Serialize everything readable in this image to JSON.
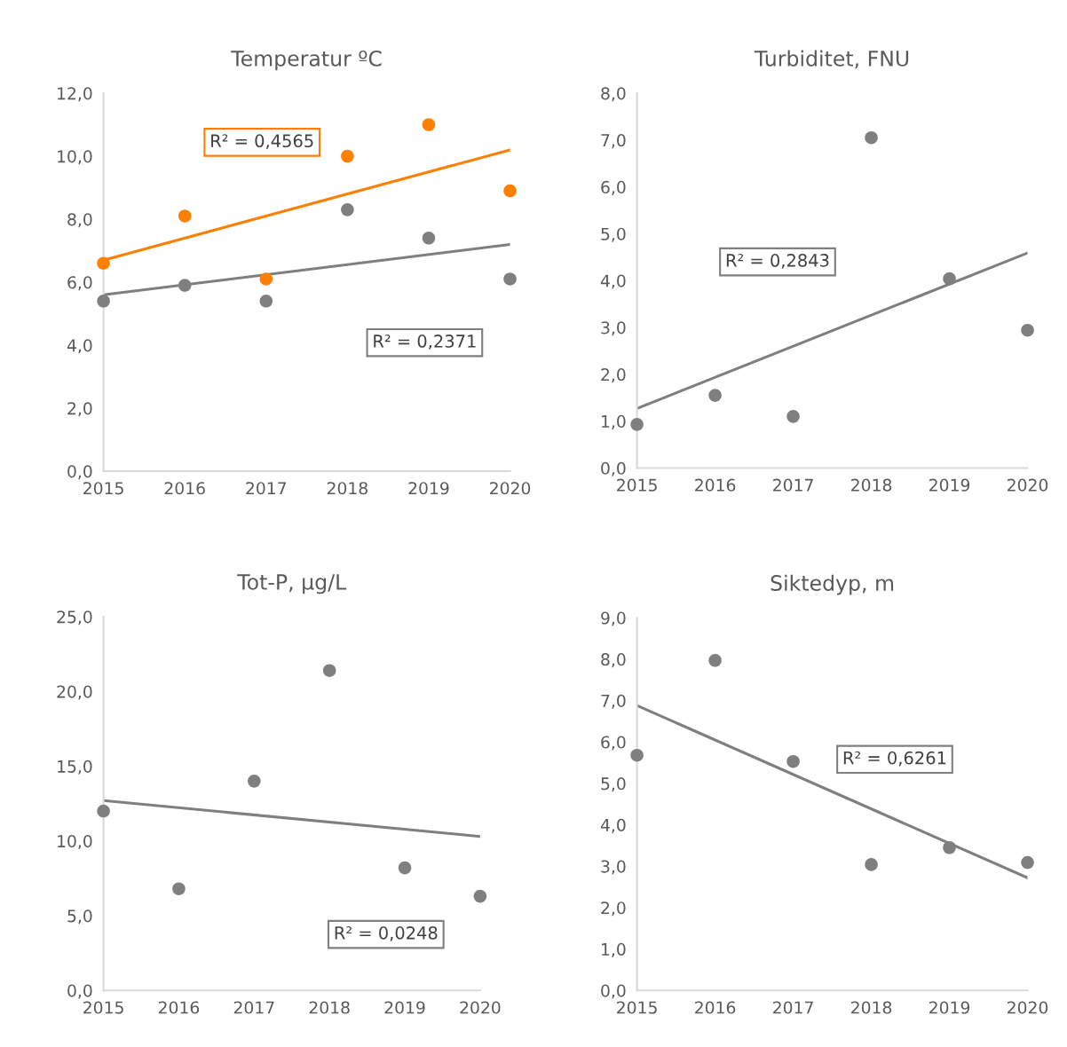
{
  "chart_data": [
    {
      "type": "scatter",
      "title": "Temperatur ºC",
      "xlim": [
        2015,
        2020
      ],
      "xticks": [
        2015,
        2016,
        2017,
        2018,
        2019,
        2020
      ],
      "ylim": [
        0,
        12
      ],
      "yticks": [
        {
          "value": 0,
          "label": "0,0"
        },
        {
          "value": 2,
          "label": "2,0"
        },
        {
          "value": 4,
          "label": "4,0"
        },
        {
          "value": 6,
          "label": "6,0"
        },
        {
          "value": 8,
          "label": "8,0"
        },
        {
          "value": 10,
          "label": "10,0"
        },
        {
          "value": 12,
          "label": "12,0"
        }
      ],
      "grid": false,
      "series": [
        {
          "color": "#ff7f00",
          "marker": "circle",
          "x": [
            2015,
            2016,
            2017,
            2018,
            2019,
            2020
          ],
          "values": [
            6.6,
            8.1,
            6.1,
            10.0,
            11.0,
            8.9
          ]
        },
        {
          "color": "#7f7f7f",
          "marker": "circle",
          "x": [
            2015,
            2016,
            2017,
            2018,
            2019,
            2020
          ],
          "values": [
            5.4,
            5.9,
            5.4,
            8.3,
            7.4,
            6.1
          ]
        },
        {
          "type": "line",
          "marker": "none",
          "color": "#ff7f00",
          "x": [
            2015,
            2020
          ],
          "values": [
            6.7,
            10.2
          ]
        },
        {
          "type": "line",
          "marker": "none",
          "color": "#7f7f7f",
          "x": [
            2015,
            2020
          ],
          "values": [
            5.6,
            7.2
          ]
        }
      ],
      "annotations": [
        "R² = 0,4565",
        "R² = 0,2371"
      ]
    },
    {
      "type": "scatter",
      "title": "Turbiditet, FNU",
      "xlim": [
        2015,
        2020
      ],
      "xticks": [
        2015,
        2016,
        2017,
        2018,
        2019,
        2020
      ],
      "ylim": [
        0,
        8
      ],
      "yticks": [
        {
          "value": 0,
          "label": "0,0"
        },
        {
          "value": 1,
          "label": "1,0"
        },
        {
          "value": 2,
          "label": "2,0"
        },
        {
          "value": 3,
          "label": "3,0"
        },
        {
          "value": 4,
          "label": "4,0"
        },
        {
          "value": 5,
          "label": "5,0"
        },
        {
          "value": 6,
          "label": "6,0"
        },
        {
          "value": 7,
          "label": "7,0"
        },
        {
          "value": 8,
          "label": "8,0"
        }
      ],
      "grid": false,
      "series": [
        {
          "color": "#7f7f7f",
          "marker": "circle",
          "x": [
            2015,
            2016,
            2017,
            2018,
            2019,
            2020
          ],
          "values": [
            0.93,
            1.55,
            1.1,
            7.05,
            4.04,
            2.94
          ]
        },
        {
          "type": "line",
          "marker": "none",
          "color": "#7f7f7f",
          "x": [
            2015,
            2020
          ],
          "values": [
            1.27,
            4.59
          ]
        }
      ],
      "annotations": [
        "R² = 0,2843"
      ]
    },
    {
      "type": "scatter",
      "title": "Tot-P, µg/L",
      "xlim": [
        2015,
        2020
      ],
      "xticks": [
        2015,
        2016,
        2017,
        2018,
        2019,
        2020
      ],
      "ylim": [
        0,
        25
      ],
      "yticks": [
        {
          "value": 0,
          "label": "0,0"
        },
        {
          "value": 5,
          "label": "5,0"
        },
        {
          "value": 10,
          "label": "10,0"
        },
        {
          "value": 15,
          "label": "15,0"
        },
        {
          "value": 20,
          "label": "20,0"
        },
        {
          "value": 25,
          "label": "25,0"
        }
      ],
      "grid": false,
      "series": [
        {
          "color": "#7f7f7f",
          "marker": "circle",
          "x": [
            2015,
            2016,
            2017,
            2018,
            2019,
            2020
          ],
          "values": [
            12.0,
            6.8,
            14.0,
            21.4,
            8.2,
            6.3
          ]
        },
        {
          "type": "line",
          "marker": "none",
          "color": "#7f7f7f",
          "x": [
            2015,
            2020
          ],
          "values": [
            12.7,
            10.3
          ]
        }
      ],
      "annotations": [
        "R² = 0,0248"
      ]
    },
    {
      "type": "scatter",
      "title": "Siktedyp, m",
      "xlim": [
        2015,
        2020
      ],
      "xticks": [
        2015,
        2016,
        2017,
        2018,
        2019,
        2020
      ],
      "ylim": [
        0,
        9
      ],
      "yticks": [
        {
          "value": 0,
          "label": "0,0"
        },
        {
          "value": 1,
          "label": "1,0"
        },
        {
          "value": 2,
          "label": "2,0"
        },
        {
          "value": 3,
          "label": "3,0"
        },
        {
          "value": 4,
          "label": "4,0"
        },
        {
          "value": 5,
          "label": "5,0"
        },
        {
          "value": 6,
          "label": "6,0"
        },
        {
          "value": 7,
          "label": "7,0"
        },
        {
          "value": 8,
          "label": "8,0"
        },
        {
          "value": 9,
          "label": "9,0"
        }
      ],
      "grid": false,
      "series": [
        {
          "color": "#7f7f7f",
          "marker": "circle",
          "x": [
            2015,
            2016,
            2017,
            2018,
            2019,
            2020
          ],
          "values": [
            5.68,
            7.97,
            5.53,
            3.04,
            3.45,
            3.09
          ]
        },
        {
          "type": "line",
          "marker": "none",
          "color": "#7f7f7f",
          "x": [
            2015,
            2020
          ],
          "values": [
            6.88,
            2.72
          ]
        }
      ],
      "annotations": [
        "R² = 0,6261"
      ]
    }
  ]
}
